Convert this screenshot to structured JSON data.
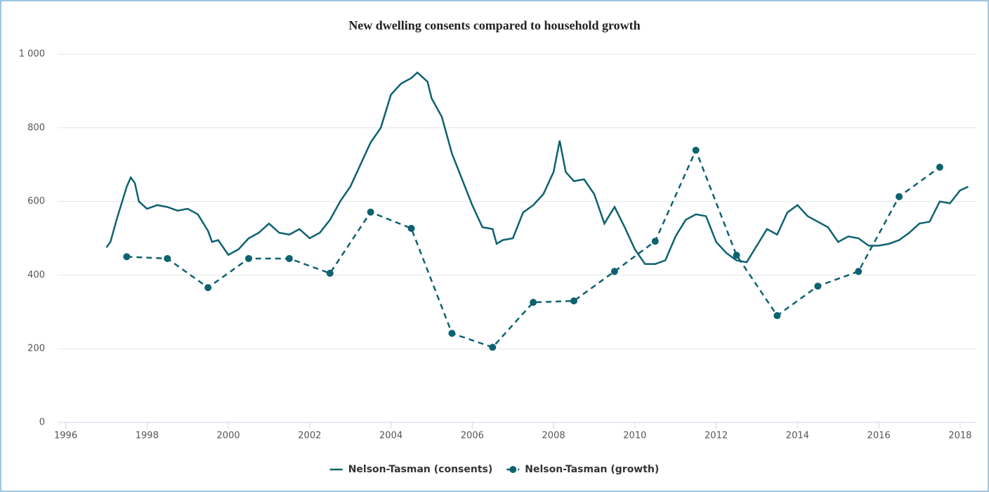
{
  "chart_data": {
    "type": "line",
    "title": "New dwelling consents compared to household growth",
    "xlim": [
      1995.8,
      2018.4
    ],
    "xticks": [
      1996,
      1998,
      2000,
      2002,
      2004,
      2006,
      2008,
      2010,
      2012,
      2014,
      2016,
      2018
    ],
    "ylim": [
      0,
      1000
    ],
    "yticks": [
      0,
      200,
      400,
      600,
      800,
      {
        "value": 1000,
        "label": "1 000"
      }
    ],
    "grid": true,
    "legend": "bottom",
    "series": [
      {
        "name": "Nelson-Tasman (consents)",
        "color": "#0d6270",
        "dashed": false,
        "markers": false,
        "x": [
          1997.0,
          1997.1,
          1997.25,
          1997.5,
          1997.6,
          1997.7,
          1997.8,
          1998.0,
          1998.25,
          1998.5,
          1998.75,
          1999.0,
          1999.25,
          1999.5,
          1999.6,
          1999.75,
          2000.0,
          2000.25,
          2000.5,
          2000.75,
          2001.0,
          2001.25,
          2001.5,
          2001.75,
          2002.0,
          2002.25,
          2002.5,
          2002.75,
          2003.0,
          2003.25,
          2003.5,
          2003.75,
          2004.0,
          2004.25,
          2004.5,
          2004.65,
          2004.9,
          2005.0,
          2005.25,
          2005.5,
          2005.75,
          2006.0,
          2006.25,
          2006.5,
          2006.6,
          2006.75,
          2007.0,
          2007.25,
          2007.5,
          2007.75,
          2008.0,
          2008.15,
          2008.3,
          2008.5,
          2008.75,
          2009.0,
          2009.25,
          2009.5,
          2009.75,
          2010.0,
          2010.25,
          2010.5,
          2010.75,
          2011.0,
          2011.25,
          2011.5,
          2011.75,
          2012.0,
          2012.25,
          2012.5,
          2012.75,
          2013.0,
          2013.25,
          2013.5,
          2013.75,
          2014.0,
          2014.25,
          2014.5,
          2014.75,
          2015.0,
          2015.25,
          2015.5,
          2015.75,
          2016.0,
          2016.25,
          2016.5,
          2016.75,
          2017.0,
          2017.25,
          2017.5,
          2017.75,
          2018.0,
          2018.2
        ],
        "values": [
          475,
          490,
          550,
          640,
          665,
          650,
          600,
          580,
          590,
          585,
          575,
          580,
          565,
          520,
          490,
          495,
          455,
          470,
          500,
          515,
          540,
          515,
          510,
          525,
          500,
          515,
          550,
          600,
          640,
          700,
          760,
          800,
          890,
          920,
          935,
          950,
          925,
          880,
          830,
          730,
          660,
          590,
          530,
          525,
          485,
          495,
          500,
          570,
          590,
          620,
          680,
          765,
          680,
          655,
          660,
          620,
          540,
          585,
          530,
          470,
          430,
          430,
          440,
          505,
          550,
          565,
          560,
          490,
          460,
          440,
          435,
          480,
          525,
          510,
          570,
          590,
          560,
          545,
          530,
          490,
          505,
          500,
          480,
          480,
          485,
          495,
          515,
          540,
          545,
          600,
          595,
          630,
          640
        ]
      },
      {
        "name": "Nelson-Tasman (growth)",
        "color": "#0d6270",
        "dashed": true,
        "markers": true,
        "x": [
          1997.5,
          1998.5,
          1999.5,
          2000.5,
          2001.5,
          2002.5,
          2003.5,
          2004.5,
          2005.5,
          2006.5,
          2007.5,
          2008.5,
          2009.5,
          2010.5,
          2011.5,
          2012.5,
          2013.5,
          2014.5,
          2015.5,
          2016.5,
          2017.5
        ],
        "values": [
          450,
          445,
          366,
          445,
          445,
          405,
          571,
          527,
          242,
          204,
          326,
          330,
          410,
          492,
          739,
          454,
          290,
          370,
          410,
          613,
          693
        ]
      }
    ]
  }
}
